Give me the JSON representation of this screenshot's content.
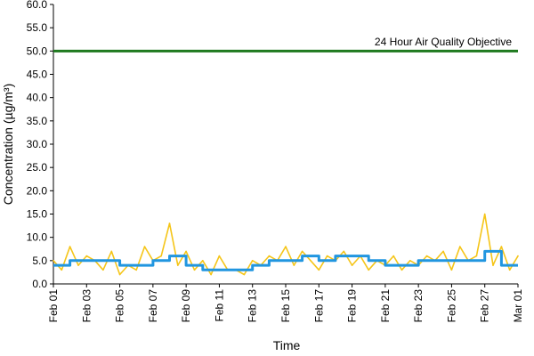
{
  "chart_data": {
    "type": "line",
    "title": "",
    "xlabel": "Time",
    "ylabel": "Concentration (µg/m³)",
    "ylim": [
      0,
      60
    ],
    "yticks": [
      "0.0",
      "5.0",
      "10.0",
      "15.0",
      "20.0",
      "25.0",
      "30.0",
      "35.0",
      "40.0",
      "45.0",
      "50.0",
      "55.0",
      "60.0"
    ],
    "xticks": [
      "Feb 01",
      "Feb 03",
      "Feb 05",
      "Feb 07",
      "Feb 09",
      "Feb 11",
      "Feb 13",
      "Feb 15",
      "Feb 17",
      "Feb 19",
      "Feb 21",
      "Feb 23",
      "Feb 25",
      "Feb 27",
      "Mar 01"
    ],
    "x_range_days": [
      0,
      28
    ],
    "grid": false,
    "legend": "none",
    "objective": {
      "label": "24 Hour Air Quality Objective",
      "value": 50,
      "color": "#1f7a1f"
    },
    "series": [
      {
        "role": "hourly",
        "color": "#f5c518",
        "x_days": [
          0,
          0.5,
          1,
          1.5,
          2,
          2.5,
          3,
          3.5,
          4,
          4.5,
          5,
          5.5,
          6,
          6.5,
          7,
          7.5,
          8,
          8.5,
          9,
          9.5,
          10,
          10.5,
          11,
          11.5,
          12,
          12.5,
          13,
          13.5,
          14,
          14.5,
          15,
          15.5,
          16,
          16.5,
          17,
          17.5,
          18,
          18.5,
          19,
          19.5,
          20,
          20.5,
          21,
          21.5,
          22,
          22.5,
          23,
          23.5,
          24,
          24.5,
          25,
          25.5,
          26,
          26.5,
          27,
          27.5,
          28
        ],
        "values": [
          5,
          3,
          8,
          4,
          6,
          5,
          3,
          7,
          2,
          4,
          3,
          8,
          5,
          6,
          13,
          4,
          7,
          3,
          5,
          2,
          6,
          3,
          3,
          2,
          5,
          4,
          6,
          5,
          8,
          4,
          7,
          5,
          3,
          6,
          5,
          7,
          4,
          6,
          3,
          5,
          4,
          6,
          3,
          5,
          4,
          6,
          5,
          7,
          3,
          8,
          5,
          6,
          15,
          4,
          8,
          3,
          6
        ]
      },
      {
        "role": "daily",
        "color": "#2196e0",
        "x_days": [
          0,
          1,
          2,
          3,
          4,
          5,
          6,
          7,
          8,
          9,
          10,
          11,
          12,
          13,
          14,
          15,
          16,
          17,
          18,
          19,
          20,
          21,
          22,
          23,
          24,
          25,
          26,
          27,
          28
        ],
        "values": [
          4,
          5,
          5,
          5,
          4,
          4,
          5,
          6,
          4,
          3,
          3,
          3,
          4,
          5,
          5,
          6,
          5,
          6,
          6,
          5,
          4,
          4,
          5,
          5,
          5,
          5,
          7,
          4,
          4
        ]
      }
    ]
  }
}
